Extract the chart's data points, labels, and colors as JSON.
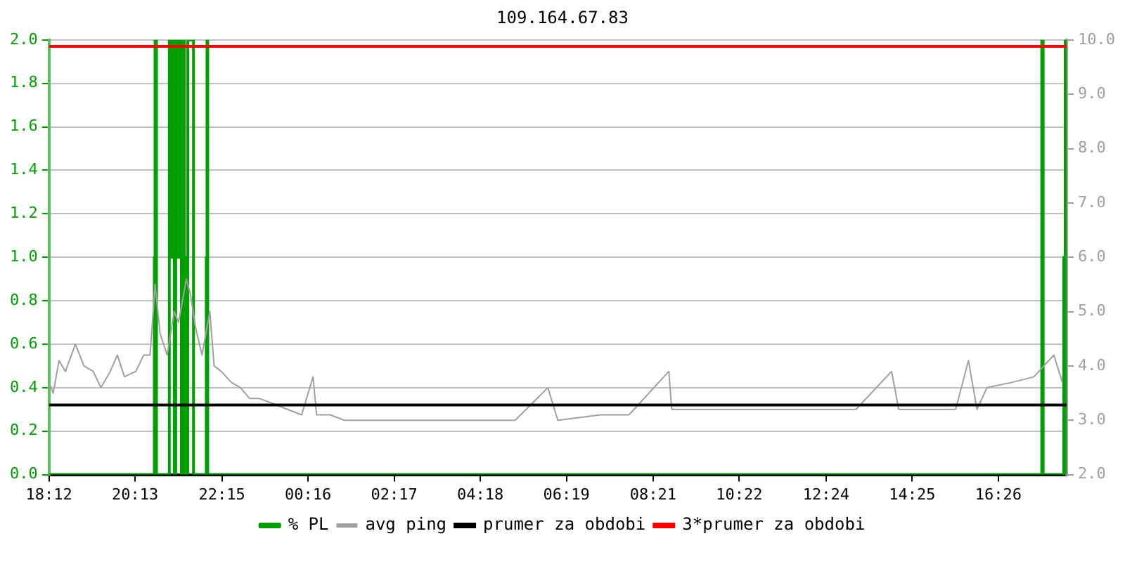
{
  "chart_data": {
    "type": "line",
    "title": "109.164.67.83",
    "xlim": [
      "--01-01T18:12",
      "--01-02T18:02"
    ],
    "xticks": [
      {
        "value": "--01-01T18:12",
        "label": "18:12"
      },
      {
        "value": "--01-01T20:13",
        "label": "20:13"
      },
      {
        "value": "--01-01T22:15",
        "label": "22:15"
      },
      {
        "value": "--01-02T00:16",
        "label": "00:16"
      },
      {
        "value": "--01-02T02:17",
        "label": "02:17"
      },
      {
        "value": "--01-02T04:18",
        "label": "04:18"
      },
      {
        "value": "--01-02T06:19",
        "label": "06:19"
      },
      {
        "value": "--01-02T08:21",
        "label": "08:21"
      },
      {
        "value": "--01-02T10:22",
        "label": "10:22"
      },
      {
        "value": "--01-02T12:24",
        "label": "12:24"
      },
      {
        "value": "--01-02T14:25",
        "label": "14:25"
      },
      {
        "value": "--01-02T16:26",
        "label": "16:26"
      }
    ],
    "ylim": [
      0,
      2
    ],
    "yticks": [
      {
        "value": 0,
        "label": "0.0"
      },
      {
        "value": 0.2,
        "label": "0.2"
      },
      {
        "value": 0.4,
        "label": "0.4"
      },
      {
        "value": 0.6,
        "label": "0.6"
      },
      {
        "value": 0.8,
        "label": "0.8"
      },
      {
        "value": 1,
        "label": "1.0"
      },
      {
        "value": 1.2,
        "label": "1.2"
      },
      {
        "value": 1.4,
        "label": "1.4"
      },
      {
        "value": 1.6,
        "label": "1.6"
      },
      {
        "value": 1.8,
        "label": "1.8"
      },
      {
        "value": 2,
        "label": "2.0"
      }
    ],
    "y2lim": [
      2,
      10
    ],
    "y2ticks": [
      {
        "value": 2,
        "label": "2.0"
      },
      {
        "value": 3,
        "label": "3.0"
      },
      {
        "value": 4,
        "label": "4.0"
      },
      {
        "value": 5,
        "label": "5.0"
      },
      {
        "value": 6,
        "label": "6.0"
      },
      {
        "value": 7,
        "label": "7.0"
      },
      {
        "value": 8,
        "label": "8.0"
      },
      {
        "value": 9,
        "label": "9.0"
      },
      {
        "value": 10,
        "label": "10.0"
      }
    ],
    "series": [
      {
        "name": "% PL",
        "type": "step",
        "color": "#00a000",
        "x": [
          "--01-01T18:12",
          "--01-01T20:40",
          "--01-01T20:41",
          "--01-01T20:43",
          "--01-01T21:01",
          "--01-01T21:04",
          "--01-01T21:07",
          "--01-01T21:08",
          "--01-01T21:10",
          "--01-01T21:12",
          "--01-01T21:16",
          "--01-01T21:18",
          "--01-01T21:20",
          "--01-01T21:22",
          "--01-01T21:24",
          "--01-01T21:27",
          "--01-01T21:35",
          "--01-01T21:53",
          "--01-01T21:54",
          "--01-01T21:55",
          "--01-02T17:27",
          "--01-02T17:29",
          "--01-02T17:58",
          "--01-02T18:00",
          "--01-02T18:01"
        ],
        "values": [
          0,
          1,
          2,
          0,
          2,
          1,
          2,
          0,
          2,
          1,
          2,
          0,
          2,
          1,
          0,
          2,
          0,
          1,
          2,
          0,
          2,
          0,
          1,
          2,
          0
        ]
      },
      {
        "name": "avg ping",
        "type": "line",
        "axis": "y2",
        "color": "#a0a0a0",
        "x": [
          "--01-01T18:12",
          "--01-01T18:18",
          "--01-01T18:26",
          "--01-01T18:35",
          "--01-01T18:49",
          "--01-01T19:01",
          "--01-01T19:14",
          "--01-01T19:25",
          "--01-01T19:38",
          "--01-01T19:48",
          "--01-01T19:58",
          "--01-01T20:14",
          "--01-01T20:25",
          "--01-01T20:34",
          "--01-01T20:41",
          "--01-01T20:48",
          "--01-01T20:58",
          "--01-01T21:08",
          "--01-01T21:14",
          "--01-01T21:25",
          "--01-01T21:31",
          "--01-01T21:38",
          "--01-01T21:47",
          "--01-01T21:58",
          "--01-01T22:04",
          "--01-01T22:14",
          "--01-01T22:28",
          "--01-01T22:41",
          "--01-01T22:54",
          "--01-01T23:08",
          "--01-01T23:28",
          "--01-01T23:47",
          "--01-02T00:07",
          "--01-02T00:23",
          "--01-02T00:28",
          "--01-02T00:47",
          "--01-02T01:07",
          "--01-02T01:27",
          "--01-02T01:47",
          "--01-02T02:27",
          "--01-02T03:07",
          "--01-02T04:07",
          "--01-02T05:07",
          "--01-02T05:53",
          "--01-02T06:07",
          "--01-02T07:07",
          "--01-02T07:47",
          "--01-02T08:43",
          "--01-02T08:47",
          "--01-02T09:07",
          "--01-02T09:46",
          "--01-02T10:26",
          "--01-02T11:07",
          "--01-02T11:46",
          "--01-02T12:26",
          "--01-02T13:06",
          "--01-02T13:56",
          "--01-02T14:06",
          "--01-02T14:46",
          "--01-02T15:26",
          "--01-02T15:44",
          "--01-02T15:56",
          "--01-02T16:10",
          "--01-02T16:46",
          "--01-02T17:16",
          "--01-02T17:44",
          "--01-02T17:56"
        ],
        "values": [
          3.7,
          3.5,
          4.1,
          3.9,
          4.4,
          4.0,
          3.9,
          3.6,
          3.9,
          4.2,
          3.8,
          3.9,
          4.2,
          4.2,
          5.5,
          4.6,
          4.2,
          5.0,
          4.8,
          5.6,
          5.3,
          4.7,
          4.2,
          5.0,
          4.0,
          3.9,
          3.7,
          3.6,
          3.4,
          3.4,
          3.3,
          3.2,
          3.1,
          3.8,
          3.1,
          3.1,
          3.0,
          3.0,
          3.0,
          3.0,
          3.0,
          3.0,
          3.0,
          3.6,
          3.0,
          3.1,
          3.1,
          3.9,
          3.2,
          3.2,
          3.2,
          3.2,
          3.2,
          3.2,
          3.2,
          3.2,
          3.9,
          3.2,
          3.2,
          3.2,
          4.1,
          3.2,
          3.6,
          3.7,
          3.8,
          4.2,
          3.7
        ]
      }
    ],
    "ref_lines": [
      {
        "axis": "y2",
        "value": 3.28,
        "label": "prumer za obdobi",
        "color": "#000000"
      },
      {
        "axis": "y2",
        "value": 9.88,
        "label": "3*prumer za obdobi",
        "color": "#ff0000"
      }
    ],
    "grid": "y",
    "legend": "bottom",
    "marker": "none"
  }
}
